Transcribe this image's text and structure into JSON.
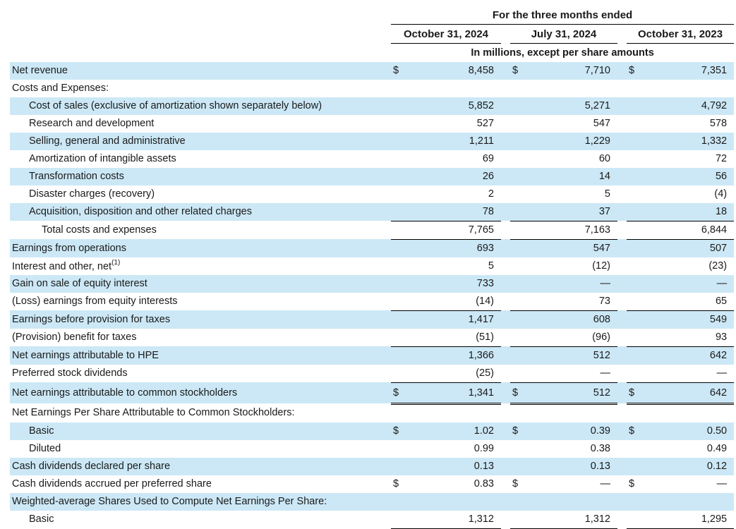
{
  "theme": {
    "row_shade": "#cce8f6",
    "rule": "#000000",
    "text": "#1a1a1a"
  },
  "table": {
    "currency_symbol": "$",
    "header": {
      "period_title": "For the three months ended",
      "columns": [
        "October 31, 2024",
        "July 31, 2024",
        "October 31, 2023"
      ],
      "units_note": "In millions, except per share amounts"
    },
    "rows": [
      {
        "label": "Net revenue",
        "indent": 0,
        "shaded": true,
        "dollar": true,
        "values": [
          "8,458",
          "7,710",
          "7,351"
        ]
      },
      {
        "label": "Costs and Expenses:",
        "indent": 0,
        "shaded": false,
        "values": []
      },
      {
        "label": "Cost of sales (exclusive of amortization shown separately below)",
        "indent": 1,
        "shaded": true,
        "values": [
          "5,852",
          "5,271",
          "4,792"
        ]
      },
      {
        "label": "Research and development",
        "indent": 1,
        "shaded": false,
        "values": [
          "527",
          "547",
          "578"
        ]
      },
      {
        "label": "Selling, general and administrative",
        "indent": 1,
        "shaded": true,
        "values": [
          "1,211",
          "1,229",
          "1,332"
        ]
      },
      {
        "label": "Amortization of intangible assets",
        "indent": 1,
        "shaded": false,
        "values": [
          "69",
          "60",
          "72"
        ]
      },
      {
        "label": "Transformation costs",
        "indent": 1,
        "shaded": true,
        "values": [
          "26",
          "14",
          "56"
        ]
      },
      {
        "label": "Disaster charges (recovery)",
        "indent": 1,
        "shaded": false,
        "values": [
          "2",
          "5",
          "(4)"
        ]
      },
      {
        "label": "Acquisition, disposition and other related charges",
        "indent": 1,
        "shaded": true,
        "values": [
          "78",
          "37",
          "18"
        ],
        "underline": "single"
      },
      {
        "label": "Total costs and expenses",
        "indent": 2,
        "shaded": false,
        "values": [
          "7,765",
          "7,163",
          "6,844"
        ],
        "underline": "single"
      },
      {
        "label": "Earnings from operations",
        "indent": 0,
        "shaded": true,
        "values": [
          "693",
          "547",
          "507"
        ]
      },
      {
        "label": "Interest and other, net",
        "sup": "(1)",
        "indent": 0,
        "shaded": false,
        "values": [
          "5",
          "(12)",
          "(23)"
        ]
      },
      {
        "label": "Gain on sale of equity interest",
        "indent": 0,
        "shaded": true,
        "values": [
          "733",
          "—",
          "—"
        ]
      },
      {
        "label": "(Loss) earnings from equity interests",
        "indent": 0,
        "shaded": false,
        "values": [
          "(14)",
          "73",
          "65"
        ],
        "underline": "single"
      },
      {
        "label": "Earnings before provision for taxes",
        "indent": 0,
        "shaded": true,
        "values": [
          "1,417",
          "608",
          "549"
        ]
      },
      {
        "label": "(Provision) benefit for taxes",
        "indent": 0,
        "shaded": false,
        "values": [
          "(51)",
          "(96)",
          "93"
        ],
        "underline": "single"
      },
      {
        "label": "Net earnings attributable to HPE",
        "indent": 0,
        "shaded": true,
        "values": [
          "1,366",
          "512",
          "642"
        ]
      },
      {
        "label": "Preferred stock dividends",
        "indent": 0,
        "shaded": false,
        "values": [
          "(25)",
          "—",
          "—"
        ],
        "underline": "single"
      },
      {
        "label": "Net earnings attributable to common stockholders",
        "indent": 0,
        "shaded": true,
        "dollar": true,
        "values": [
          "1,341",
          "512",
          "642"
        ],
        "underline": "double"
      },
      {
        "label": "Net Earnings Per Share Attributable to Common Stockholders:",
        "indent": 0,
        "shaded": false,
        "values": []
      },
      {
        "label": "Basic",
        "indent": 1,
        "shaded": true,
        "dollar": true,
        "values": [
          "1.02",
          "0.39",
          "0.50"
        ]
      },
      {
        "label": "Diluted",
        "indent": 1,
        "shaded": false,
        "values": [
          "0.99",
          "0.38",
          "0.49"
        ]
      },
      {
        "label": "Cash dividends declared per share",
        "indent": 0,
        "shaded": true,
        "values": [
          "0.13",
          "0.13",
          "0.12"
        ]
      },
      {
        "label": "Cash dividends accrued per preferred share",
        "indent": 0,
        "shaded": false,
        "dollar": true,
        "values": [
          "0.83",
          "—",
          "—"
        ]
      },
      {
        "label": "Weighted-average Shares Used to Compute Net Earnings Per Share:",
        "indent": 0,
        "shaded": true,
        "values": []
      },
      {
        "label": "Basic",
        "indent": 1,
        "shaded": false,
        "values": [
          "1,312",
          "1,312",
          "1,295"
        ],
        "underline": "single"
      }
    ]
  }
}
